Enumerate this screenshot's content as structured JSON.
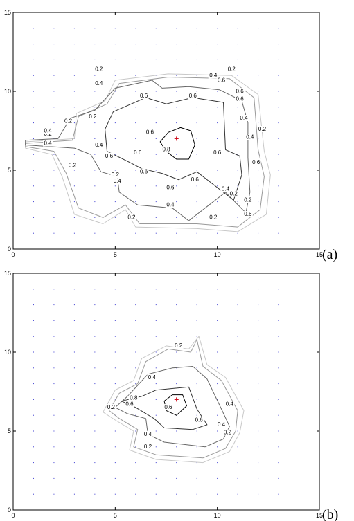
{
  "chart_data": [
    {
      "type": "contour",
      "panel_label": "(a)",
      "xlim": [
        0,
        15
      ],
      "ylim": [
        0,
        15
      ],
      "xticks": [
        0,
        5,
        10,
        15
      ],
      "yticks": [
        0,
        5,
        10,
        15
      ],
      "grid_points": {
        "x_start": 1,
        "x_step": 1,
        "x_end": 13,
        "y_start": 1,
        "y_step": 1,
        "y_end": 14
      },
      "marker": {
        "x": 8,
        "y": 7
      },
      "levels": [
        0.1,
        0.2,
        0.4,
        0.6,
        0.8
      ],
      "level_colors": {
        "0.1": "#c8c8c8",
        "0.2": "#999999",
        "0.4": "#666666",
        "0.6": "#333333",
        "0.8": "#000000"
      },
      "contours": [
        {
          "level": 0.1,
          "points": [
            [
              0.6,
              6.8
            ],
            [
              3.0,
              7.0
            ],
            [
              3.1,
              8.6
            ],
            [
              4.5,
              9.4
            ],
            [
              5.0,
              10.7
            ],
            [
              7.6,
              11.1
            ],
            [
              10.7,
              11.0
            ],
            [
              12.0,
              9.8
            ],
            [
              12.3,
              6.2
            ],
            [
              12.6,
              4.7
            ],
            [
              12.4,
              2.2
            ],
            [
              11.0,
              1.1
            ],
            [
              9.0,
              1.3
            ],
            [
              6.0,
              1.4
            ],
            [
              5.5,
              2.5
            ],
            [
              4.4,
              1.6
            ],
            [
              3.0,
              2.2
            ],
            [
              2.4,
              4.6
            ],
            [
              1.9,
              6.0
            ],
            [
              0.6,
              6.4
            ]
          ]
        },
        {
          "level": 0.2,
          "points": [
            [
              0.6,
              6.7
            ],
            [
              2.9,
              6.9
            ],
            [
              3.2,
              8.4
            ],
            [
              4.6,
              9.2
            ],
            [
              5.2,
              10.5
            ],
            [
              7.6,
              10.9
            ],
            [
              10.6,
              10.8
            ],
            [
              11.8,
              9.6
            ],
            [
              12.0,
              6.3
            ],
            [
              12.3,
              4.6
            ],
            [
              12.1,
              2.5
            ],
            [
              11.0,
              1.4
            ],
            [
              9.0,
              1.6
            ],
            [
              6.2,
              1.6
            ],
            [
              5.5,
              2.8
            ],
            [
              4.4,
              2.0
            ],
            [
              3.2,
              2.6
            ],
            [
              2.6,
              4.8
            ],
            [
              2.0,
              6.2
            ],
            [
              0.6,
              6.5
            ]
          ]
        },
        {
          "level": 0.4,
          "points": [
            [
              0.6,
              6.6
            ],
            [
              3.0,
              6.4
            ],
            [
              3.8,
              6.0
            ],
            [
              4.3,
              4.9
            ],
            [
              5.1,
              4.6
            ],
            [
              5.2,
              3.6
            ],
            [
              6.1,
              2.8
            ],
            [
              7.8,
              2.6
            ],
            [
              8.6,
              1.8
            ],
            [
              9.6,
              2.8
            ],
            [
              10.4,
              3.6
            ],
            [
              11.4,
              2.3
            ],
            [
              11.6,
              3.6
            ],
            [
              11.5,
              5.8
            ],
            [
              11.5,
              8.0
            ],
            [
              11.2,
              9.4
            ],
            [
              10.1,
              10.1
            ],
            [
              8.6,
              10.3
            ],
            [
              7.3,
              10.2
            ],
            [
              6.8,
              10.7
            ],
            [
              5.0,
              10.2
            ],
            [
              4.0,
              8.8
            ],
            [
              2.8,
              8.3
            ],
            [
              2.2,
              7.0
            ],
            [
              0.6,
              6.9
            ]
          ]
        },
        {
          "level": 0.6,
          "points": [
            [
              4.9,
              8.7
            ],
            [
              6.5,
              9.6
            ],
            [
              7.5,
              9.2
            ],
            [
              8.8,
              9.6
            ],
            [
              10.3,
              9.3
            ],
            [
              10.4,
              6.3
            ],
            [
              11.1,
              5.9
            ],
            [
              11.2,
              4.7
            ],
            [
              10.8,
              3.1
            ],
            [
              9.8,
              4.1
            ],
            [
              9.0,
              4.9
            ],
            [
              8.1,
              4.4
            ],
            [
              7.3,
              4.8
            ],
            [
              6.3,
              5.1
            ],
            [
              5.7,
              5.5
            ],
            [
              4.6,
              6.2
            ],
            [
              4.5,
              7.6
            ]
          ]
        },
        {
          "level": 0.8,
          "points": [
            [
              7.2,
              6.8
            ],
            [
              7.6,
              7.4
            ],
            [
              8.2,
              7.7
            ],
            [
              8.7,
              7.5
            ],
            [
              8.9,
              6.6
            ],
            [
              8.6,
              5.7
            ],
            [
              8.0,
              5.7
            ],
            [
              7.5,
              6.2
            ]
          ]
        }
      ],
      "labels": [
        {
          "text": "0.2",
          "x": 4.2,
          "y": 11.3
        },
        {
          "text": "0.2",
          "x": 10.7,
          "y": 11.3
        },
        {
          "text": "0.2",
          "x": 2.7,
          "y": 8.0
        },
        {
          "text": "0.2",
          "x": 3.9,
          "y": 8.3
        },
        {
          "text": "0.2",
          "x": 1.7,
          "y": 7.2
        },
        {
          "text": "0.2",
          "x": 2.9,
          "y": 5.2
        },
        {
          "text": "0.2",
          "x": 5.0,
          "y": 4.6
        },
        {
          "text": "0.2",
          "x": 5.8,
          "y": 1.9
        },
        {
          "text": "0.2",
          "x": 9.8,
          "y": 1.9
        },
        {
          "text": "0.2",
          "x": 11.5,
          "y": 3.0
        },
        {
          "text": "0.2",
          "x": 12.2,
          "y": 7.5
        },
        {
          "text": "0.2",
          "x": 10.8,
          "y": 3.4
        },
        {
          "text": "0.4",
          "x": 4.2,
          "y": 10.4
        },
        {
          "text": "0.4",
          "x": 9.8,
          "y": 10.9
        },
        {
          "text": "0.4",
          "x": 1.7,
          "y": 7.4
        },
        {
          "text": "0.4",
          "x": 1.7,
          "y": 6.6
        },
        {
          "text": "0.4",
          "x": 4.2,
          "y": 6.5
        },
        {
          "text": "0.4",
          "x": 5.1,
          "y": 4.2
        },
        {
          "text": "0.4",
          "x": 7.7,
          "y": 2.7
        },
        {
          "text": "0.4",
          "x": 10.4,
          "y": 3.7
        },
        {
          "text": "0.4",
          "x": 11.6,
          "y": 7.0
        },
        {
          "text": "0.4",
          "x": 11.3,
          "y": 8.2
        },
        {
          "text": "0.6",
          "x": 10.2,
          "y": 10.6
        },
        {
          "text": "0.6",
          "x": 11.1,
          "y": 9.9
        },
        {
          "text": "0.6",
          "x": 6.4,
          "y": 9.6
        },
        {
          "text": "0.6",
          "x": 8.8,
          "y": 9.6
        },
        {
          "text": "0.6",
          "x": 4.7,
          "y": 5.8
        },
        {
          "text": "0.6",
          "x": 6.1,
          "y": 6.0
        },
        {
          "text": "0.6",
          "x": 6.4,
          "y": 4.8
        },
        {
          "text": "0.6",
          "x": 10.0,
          "y": 6.0
        },
        {
          "text": "0.6",
          "x": 11.9,
          "y": 5.4
        },
        {
          "text": "0.6",
          "x": 7.7,
          "y": 3.8
        },
        {
          "text": "0.6",
          "x": 8.9,
          "y": 4.3
        },
        {
          "text": "0.6",
          "x": 11.5,
          "y": 2.1
        },
        {
          "text": "0.6",
          "x": 11.1,
          "y": 9.4
        },
        {
          "text": "0.6",
          "x": 6.7,
          "y": 7.3
        },
        {
          "text": "0.8",
          "x": 7.5,
          "y": 6.2
        }
      ]
    },
    {
      "type": "contour",
      "panel_label": "(b)",
      "xlim": [
        0,
        15
      ],
      "ylim": [
        0,
        15
      ],
      "xticks": [
        0,
        5,
        10,
        15
      ],
      "yticks": [
        0,
        5,
        10,
        15
      ],
      "grid_points": {
        "x_start": 1,
        "x_step": 1,
        "x_end": 13,
        "y_start": 1,
        "y_step": 1,
        "y_end": 14
      },
      "marker": {
        "x": 8,
        "y": 7
      },
      "levels": [
        0.1,
        0.2,
        0.4,
        0.6,
        0.8
      ],
      "level_colors": {
        "0.1": "#c8c8c8",
        "0.2": "#999999",
        "0.4": "#666666",
        "0.6": "#333333",
        "0.8": "#000000"
      },
      "contours": [
        {
          "level": 0.1,
          "points": [
            [
              4.4,
              6.2
            ],
            [
              5.0,
              7.6
            ],
            [
              5.9,
              8.2
            ],
            [
              6.3,
              9.6
            ],
            [
              7.5,
              10.4
            ],
            [
              8.6,
              10.2
            ],
            [
              9.1,
              11.0
            ],
            [
              9.5,
              9.2
            ],
            [
              10.4,
              8.4
            ],
            [
              11.3,
              6.3
            ],
            [
              11.1,
              4.9
            ],
            [
              10.6,
              3.7
            ],
            [
              9.3,
              3.0
            ],
            [
              7.0,
              3.2
            ],
            [
              5.7,
              3.8
            ],
            [
              5.9,
              5.0
            ],
            [
              5.0,
              5.7
            ]
          ]
        },
        {
          "level": 0.2,
          "points": [
            [
              4.7,
              6.3
            ],
            [
              5.2,
              7.4
            ],
            [
              6.1,
              8.0
            ],
            [
              6.5,
              9.4
            ],
            [
              7.6,
              10.2
            ],
            [
              8.7,
              10.0
            ],
            [
              9.0,
              10.8
            ],
            [
              9.3,
              9.1
            ],
            [
              10.2,
              8.2
            ],
            [
              11.0,
              6.3
            ],
            [
              10.9,
              5.0
            ],
            [
              10.4,
              3.9
            ],
            [
              9.3,
              3.3
            ],
            [
              7.0,
              3.5
            ],
            [
              5.9,
              4.0
            ],
            [
              6.1,
              5.1
            ],
            [
              5.2,
              5.8
            ]
          ]
        },
        {
          "level": 0.4,
          "points": [
            [
              5.0,
              6.5
            ],
            [
              5.6,
              7.2
            ],
            [
              6.6,
              8.6
            ],
            [
              7.8,
              9.0
            ],
            [
              8.8,
              9.1
            ],
            [
              9.5,
              8.3
            ],
            [
              10.2,
              6.4
            ],
            [
              10.6,
              5.3
            ],
            [
              10.3,
              4.5
            ],
            [
              9.4,
              4.0
            ],
            [
              7.4,
              4.3
            ],
            [
              6.6,
              4.8
            ],
            [
              6.5,
              5.8
            ],
            [
              5.6,
              6.1
            ]
          ]
        },
        {
          "level": 0.6,
          "points": [
            [
              5.3,
              6.9
            ],
            [
              6.3,
              7.2
            ],
            [
              7.0,
              7.6
            ],
            [
              8.6,
              7.8
            ],
            [
              9.0,
              6.4
            ],
            [
              9.5,
              5.4
            ],
            [
              8.8,
              5.1
            ],
            [
              7.4,
              5.2
            ],
            [
              6.9,
              5.8
            ],
            [
              6.0,
              6.5
            ]
          ]
        },
        {
          "level": 0.8,
          "points": [
            [
              7.4,
              6.9
            ],
            [
              7.8,
              7.3
            ],
            [
              8.3,
              7.3
            ],
            [
              8.5,
              6.6
            ],
            [
              8.0,
              6.0
            ],
            [
              7.5,
              6.3
            ]
          ]
        }
      ],
      "labels": [
        {
          "text": "0.2",
          "x": 8.1,
          "y": 10.3
        },
        {
          "text": "0.2",
          "x": 4.8,
          "y": 6.4
        },
        {
          "text": "0.2",
          "x": 10.5,
          "y": 4.8
        },
        {
          "text": "0.2",
          "x": 6.6,
          "y": 3.9
        },
        {
          "text": "0.4",
          "x": 6.8,
          "y": 8.3
        },
        {
          "text": "0.4",
          "x": 10.6,
          "y": 6.6
        },
        {
          "text": "0.4",
          "x": 10.2,
          "y": 5.3
        },
        {
          "text": "0.4",
          "x": 6.6,
          "y": 4.7
        },
        {
          "text": "0.6",
          "x": 5.7,
          "y": 6.6
        },
        {
          "text": "0.6",
          "x": 9.1,
          "y": 5.6
        },
        {
          "text": "0.6",
          "x": 7.6,
          "y": 6.4
        },
        {
          "text": "0.8",
          "x": 5.9,
          "y": 7.0
        }
      ]
    }
  ]
}
